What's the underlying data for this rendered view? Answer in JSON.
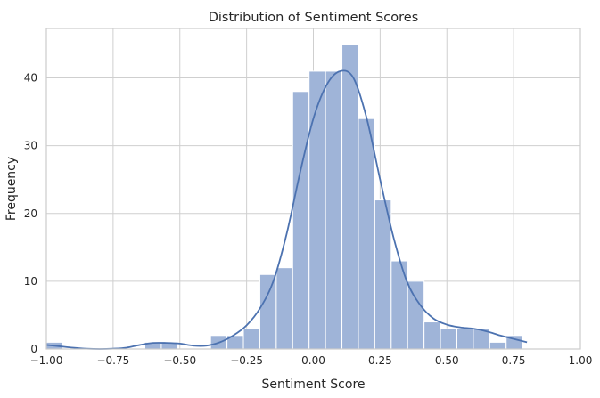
{
  "chart_data": {
    "type": "histogram",
    "title": "Distribution of Sentiment Scores",
    "xlabel": "Sentiment Score",
    "ylabel": "Frequency",
    "xlim": [
      -1.0,
      1.0
    ],
    "ylim": [
      0,
      47.3
    ],
    "xticks": [
      -1.0,
      -0.75,
      -0.5,
      -0.25,
      0.0,
      0.25,
      0.5,
      0.75,
      1.0
    ],
    "xtick_labels": [
      "−1.00",
      "−0.75",
      "−0.50",
      "−0.25",
      "0.00",
      "0.25",
      "0.50",
      "0.75",
      "1.00"
    ],
    "yticks": [
      0,
      10,
      20,
      30,
      40
    ],
    "ytick_labels": [
      "0",
      "10",
      "20",
      "30",
      "40"
    ],
    "grid": true,
    "bin_edges": [
      -1.0,
      -0.9385,
      -0.877,
      -0.8155,
      -0.754,
      -0.6925,
      -0.631,
      -0.5695,
      -0.508,
      -0.4465,
      -0.385,
      -0.3235,
      -0.262,
      -0.2005,
      -0.139,
      -0.0775,
      -0.016,
      0.0455,
      0.107,
      0.1685,
      0.23,
      0.2915,
      0.353,
      0.4145,
      0.476,
      0.5375,
      0.599,
      0.6605,
      0.722,
      0.7835,
      0.845
    ],
    "counts": [
      1,
      0,
      0,
      0,
      0,
      0,
      1,
      1,
      0,
      0,
      2,
      2,
      3,
      11,
      12,
      38,
      41,
      41,
      45,
      34,
      22,
      13,
      10,
      4,
      3,
      3,
      3,
      1,
      2,
      0
    ],
    "kde": {
      "x": [
        -1.0,
        -0.95,
        -0.9,
        -0.85,
        -0.8,
        -0.75,
        -0.7,
        -0.65,
        -0.6,
        -0.55,
        -0.5,
        -0.45,
        -0.4,
        -0.35,
        -0.3,
        -0.25,
        -0.2,
        -0.15,
        -0.1,
        -0.05,
        0.0,
        0.05,
        0.1,
        0.15,
        0.2,
        0.25,
        0.3,
        0.35,
        0.4,
        0.45,
        0.5,
        0.55,
        0.6,
        0.65,
        0.7,
        0.75,
        0.8
      ],
      "y": [
        0.6,
        0.4,
        0.2,
        0.05,
        0.0,
        0.05,
        0.2,
        0.6,
        0.9,
        0.9,
        0.8,
        0.5,
        0.5,
        1.0,
        2.0,
        3.5,
        6.0,
        10.0,
        17.0,
        26.0,
        34.0,
        39.0,
        41.0,
        40.0,
        34.0,
        25.0,
        16.5,
        10.0,
        6.5,
        4.5,
        3.6,
        3.2,
        3.0,
        2.6,
        2.0,
        1.5,
        1.0
      ]
    },
    "colors": {
      "bar_fill": "#9fb4d8",
      "kde_line": "#4c72b0",
      "grid": "#cfcfcf"
    }
  }
}
